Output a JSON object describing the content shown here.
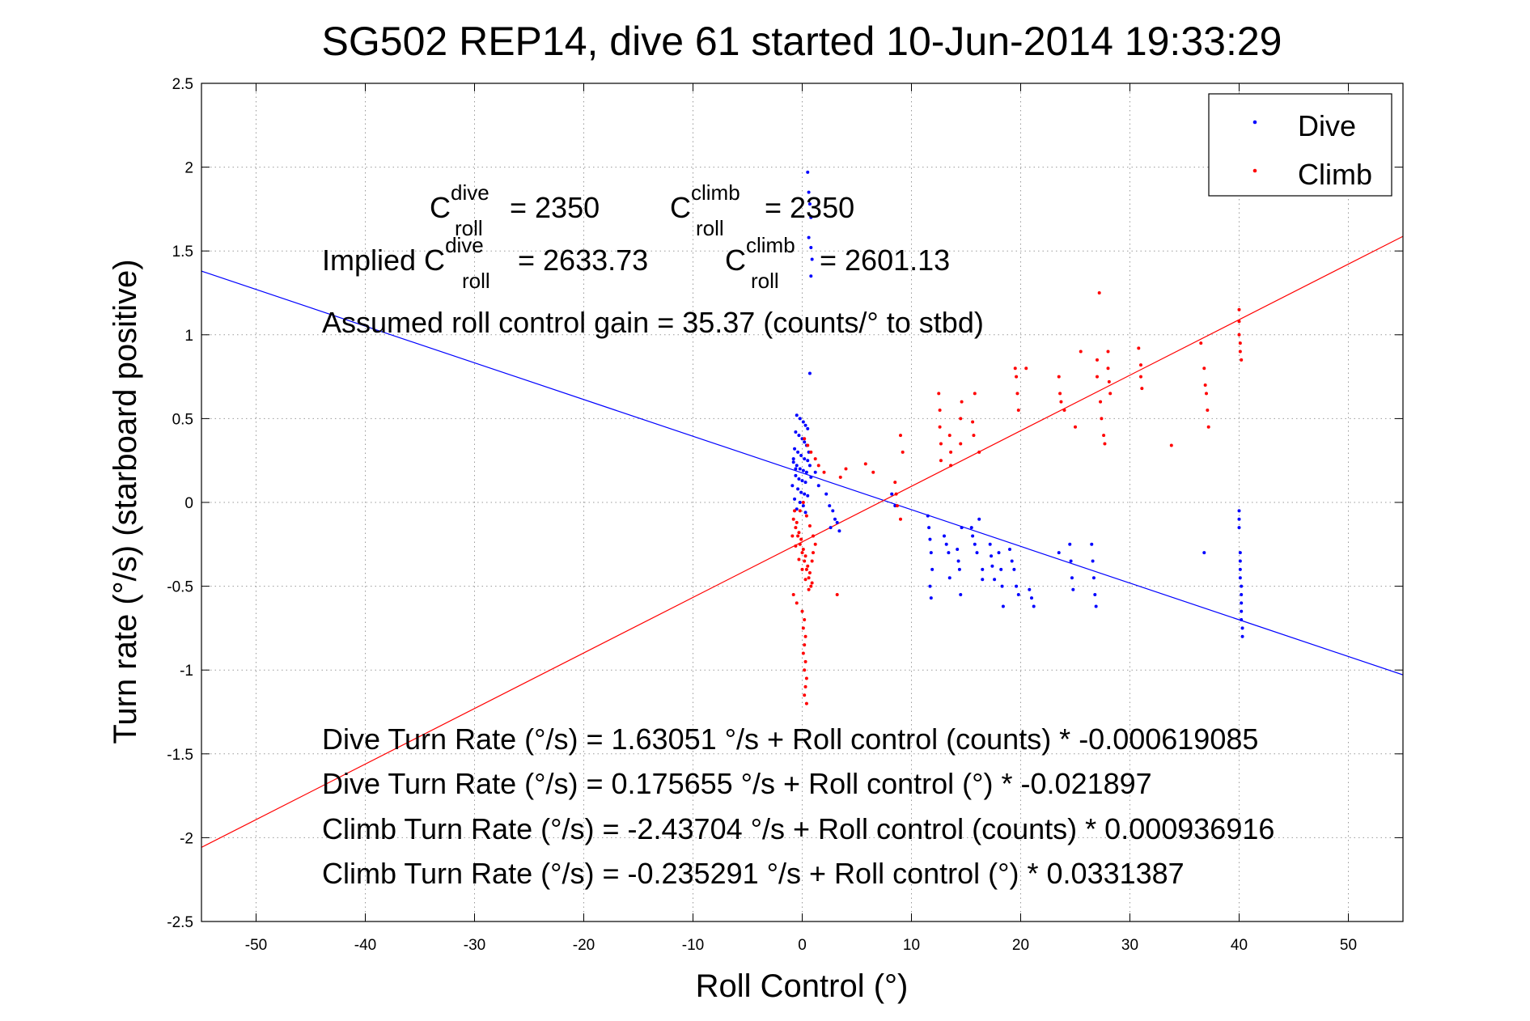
{
  "chart_data": {
    "type": "scatter",
    "title": "SG502 REP14, dive 61 started 10-Jun-2014 19:33:29",
    "xlabel": "Roll Control (°)",
    "ylabel": "Turn rate (°/s) (starboard positive)",
    "xlim": [
      -55,
      55
    ],
    "ylim": [
      -2.5,
      2.5
    ],
    "xticks": [
      "-50",
      "-40",
      "-30",
      "-20",
      "-10",
      "0",
      "10",
      "20",
      "30",
      "40",
      "50"
    ],
    "xtick_values": [
      -50,
      -40,
      -30,
      -20,
      -10,
      0,
      10,
      20,
      30,
      40,
      50
    ],
    "yticks": [
      "2.5",
      "2",
      "1.5",
      "1",
      "0.5",
      "0",
      "-0.5",
      "-1",
      "-1.5",
      "-2",
      "-2.5"
    ],
    "ytick_values": [
      2.5,
      2,
      1.5,
      1,
      0.5,
      0,
      -0.5,
      -1,
      -1.5,
      -2,
      -2.5
    ],
    "grid": true,
    "legend_position": "top-right",
    "series": [
      {
        "name": "Dive",
        "color": "#0000ff",
        "points": [
          [
            0.5,
            1.97
          ],
          [
            0.6,
            1.85
          ],
          [
            0.7,
            1.78
          ],
          [
            0.8,
            1.7
          ],
          [
            0.6,
            1.58
          ],
          [
            0.8,
            1.52
          ],
          [
            0.9,
            1.45
          ],
          [
            0.8,
            1.35
          ],
          [
            0.7,
            0.77
          ],
          [
            -0.5,
            0.52
          ],
          [
            -0.2,
            0.5
          ],
          [
            0.1,
            0.48
          ],
          [
            0.3,
            0.46
          ],
          [
            0.5,
            0.44
          ],
          [
            -0.6,
            0.42
          ],
          [
            -0.3,
            0.4
          ],
          [
            0.0,
            0.38
          ],
          [
            0.2,
            0.36
          ],
          [
            0.4,
            0.34
          ],
          [
            -0.7,
            0.32
          ],
          [
            -0.4,
            0.3
          ],
          [
            -0.1,
            0.28
          ],
          [
            0.2,
            0.26
          ],
          [
            0.5,
            0.25
          ],
          [
            -0.8,
            0.24
          ],
          [
            -0.5,
            0.22
          ],
          [
            -0.2,
            0.2
          ],
          [
            0.1,
            0.19
          ],
          [
            0.4,
            0.18
          ],
          [
            -0.6,
            0.16
          ],
          [
            -0.3,
            0.14
          ],
          [
            0.0,
            0.13
          ],
          [
            0.3,
            0.12
          ],
          [
            -0.9,
            0.1
          ],
          [
            -0.4,
            0.08
          ],
          [
            -0.1,
            0.06
          ],
          [
            0.2,
            0.05
          ],
          [
            0.5,
            0.04
          ],
          [
            -0.7,
            0.02
          ],
          [
            -0.2,
            0.0
          ],
          [
            0.1,
            -0.02
          ],
          [
            -0.5,
            -0.04
          ],
          [
            0.3,
            -0.06
          ],
          [
            -0.8,
            0.26
          ],
          [
            -0.6,
            0.2
          ],
          [
            0.6,
            0.3
          ],
          [
            0.7,
            0.22
          ],
          [
            0.8,
            0.15
          ],
          [
            1.2,
            0.18
          ],
          [
            1.5,
            0.1
          ],
          [
            2.2,
            0.05
          ],
          [
            2.5,
            -0.02
          ],
          [
            2.8,
            -0.05
          ],
          [
            3.0,
            -0.1
          ],
          [
            3.2,
            -0.12
          ],
          [
            2.6,
            -0.15
          ],
          [
            3.4,
            -0.17
          ],
          [
            8.2,
            0.05
          ],
          [
            8.5,
            -0.02
          ],
          [
            11.5,
            -0.08
          ],
          [
            11.6,
            -0.15
          ],
          [
            11.7,
            -0.22
          ],
          [
            11.8,
            -0.3
          ],
          [
            11.9,
            -0.4
          ],
          [
            11.7,
            -0.5
          ],
          [
            11.8,
            -0.57
          ],
          [
            13.0,
            -0.2
          ],
          [
            13.2,
            -0.25
          ],
          [
            13.4,
            -0.3
          ],
          [
            13.5,
            -0.45
          ],
          [
            14.2,
            -0.28
          ],
          [
            14.3,
            -0.35
          ],
          [
            14.4,
            -0.4
          ],
          [
            14.5,
            -0.55
          ],
          [
            14.6,
            -0.15
          ],
          [
            15.5,
            -0.15
          ],
          [
            15.6,
            -0.2
          ],
          [
            15.8,
            -0.25
          ],
          [
            16.0,
            -0.3
          ],
          [
            16.2,
            -0.1
          ],
          [
            16.5,
            -0.4
          ],
          [
            16.5,
            -0.46
          ],
          [
            17.2,
            -0.25
          ],
          [
            17.3,
            -0.32
          ],
          [
            17.4,
            -0.38
          ],
          [
            17.6,
            -0.46
          ],
          [
            18.0,
            -0.3
          ],
          [
            18.2,
            -0.4
          ],
          [
            18.3,
            -0.5
          ],
          [
            18.4,
            -0.62
          ],
          [
            19.0,
            -0.28
          ],
          [
            19.2,
            -0.35
          ],
          [
            19.4,
            -0.4
          ],
          [
            19.6,
            -0.5
          ],
          [
            19.8,
            -0.55
          ],
          [
            20.8,
            -0.52
          ],
          [
            21.0,
            -0.57
          ],
          [
            21.2,
            -0.62
          ],
          [
            23.5,
            -0.3
          ],
          [
            24.5,
            -0.25
          ],
          [
            24.6,
            -0.35
          ],
          [
            24.7,
            -0.45
          ],
          [
            24.8,
            -0.52
          ],
          [
            26.5,
            -0.25
          ],
          [
            26.6,
            -0.35
          ],
          [
            26.7,
            -0.45
          ],
          [
            26.8,
            -0.55
          ],
          [
            26.9,
            -0.62
          ],
          [
            36.8,
            -0.3
          ],
          [
            40.0,
            -0.05
          ],
          [
            40.0,
            -0.1
          ],
          [
            40.0,
            -0.15
          ],
          [
            40.1,
            -0.3
          ],
          [
            40.1,
            -0.35
          ],
          [
            40.1,
            -0.4
          ],
          [
            40.1,
            -0.45
          ],
          [
            40.2,
            -0.5
          ],
          [
            40.2,
            -0.55
          ],
          [
            40.2,
            -0.6
          ],
          [
            40.2,
            -0.65
          ],
          [
            40.2,
            -0.7
          ],
          [
            40.3,
            -0.75
          ],
          [
            40.3,
            -0.8
          ]
        ]
      },
      {
        "name": "Climb",
        "color": "#ff0000",
        "points": [
          [
            0.2,
            0.38
          ],
          [
            0.5,
            0.34
          ],
          [
            0.8,
            0.3
          ],
          [
            1.2,
            0.26
          ],
          [
            1.5,
            0.22
          ],
          [
            2.0,
            0.18
          ],
          [
            3.5,
            0.15
          ],
          [
            4.0,
            0.2
          ],
          [
            5.8,
            0.23
          ],
          [
            6.5,
            0.18
          ],
          [
            -0.8,
            -0.1
          ],
          [
            -0.6,
            -0.15
          ],
          [
            -0.4,
            -0.2
          ],
          [
            -0.2,
            -0.25
          ],
          [
            0.0,
            -0.3
          ],
          [
            0.2,
            -0.35
          ],
          [
            0.4,
            -0.4
          ],
          [
            0.6,
            -0.45
          ],
          [
            0.8,
            -0.5
          ],
          [
            -0.7,
            -0.05
          ],
          [
            -0.5,
            -0.12
          ],
          [
            -0.3,
            -0.18
          ],
          [
            -0.1,
            -0.22
          ],
          [
            0.1,
            -0.28
          ],
          [
            0.3,
            -0.32
          ],
          [
            0.5,
            -0.38
          ],
          [
            0.7,
            -0.42
          ],
          [
            0.9,
            -0.48
          ],
          [
            -0.9,
            -0.2
          ],
          [
            -0.6,
            -0.26
          ],
          [
            -0.3,
            -0.34
          ],
          [
            0.0,
            -0.4
          ],
          [
            0.3,
            -0.46
          ],
          [
            0.6,
            -0.52
          ],
          [
            -0.8,
            -0.55
          ],
          [
            -0.5,
            -0.6
          ],
          [
            -0.2,
            -0.05
          ],
          [
            0.1,
            0.0
          ],
          [
            0.4,
            -0.08
          ],
          [
            0.7,
            -0.14
          ],
          [
            1.0,
            -0.2
          ],
          [
            1.2,
            -0.25
          ],
          [
            1.0,
            -0.3
          ],
          [
            0.9,
            -0.35
          ],
          [
            0.0,
            -0.65
          ],
          [
            0.2,
            -0.7
          ],
          [
            0.1,
            -0.75
          ],
          [
            0.3,
            -0.8
          ],
          [
            0.2,
            -0.85
          ],
          [
            0.1,
            -0.9
          ],
          [
            0.3,
            -0.95
          ],
          [
            0.2,
            -1.0
          ],
          [
            0.4,
            -1.05
          ],
          [
            0.3,
            -1.1
          ],
          [
            0.2,
            -1.15
          ],
          [
            0.4,
            -1.2
          ],
          [
            3.2,
            -0.55
          ],
          [
            8.5,
            0.12
          ],
          [
            8.6,
            0.05
          ],
          [
            8.7,
            -0.02
          ],
          [
            9.0,
            0.4
          ],
          [
            9.2,
            0.3
          ],
          [
            9.0,
            -0.1
          ],
          [
            12.5,
            0.65
          ],
          [
            12.6,
            0.55
          ],
          [
            12.6,
            0.45
          ],
          [
            12.7,
            0.35
          ],
          [
            12.7,
            0.25
          ],
          [
            13.5,
            0.4
          ],
          [
            13.6,
            0.3
          ],
          [
            13.6,
            0.22
          ],
          [
            14.5,
            0.5
          ],
          [
            14.6,
            0.6
          ],
          [
            14.5,
            0.35
          ],
          [
            15.6,
            0.48
          ],
          [
            15.7,
            0.4
          ],
          [
            15.8,
            0.65
          ],
          [
            16.2,
            0.3
          ],
          [
            19.5,
            0.8
          ],
          [
            19.6,
            0.75
          ],
          [
            19.7,
            0.65
          ],
          [
            19.8,
            0.55
          ],
          [
            20.5,
            0.8
          ],
          [
            23.5,
            0.75
          ],
          [
            23.6,
            0.65
          ],
          [
            23.7,
            0.6
          ],
          [
            24.0,
            0.55
          ],
          [
            25.0,
            0.45
          ],
          [
            25.5,
            0.9
          ],
          [
            27.0,
            0.85
          ],
          [
            27.0,
            0.75
          ],
          [
            27.2,
            1.25
          ],
          [
            27.3,
            0.6
          ],
          [
            27.4,
            0.5
          ],
          [
            27.6,
            0.4
          ],
          [
            27.7,
            0.35
          ],
          [
            28.0,
            0.9
          ],
          [
            28.0,
            0.8
          ],
          [
            28.1,
            0.72
          ],
          [
            28.2,
            0.65
          ],
          [
            30.8,
            0.92
          ],
          [
            31.0,
            0.82
          ],
          [
            31.0,
            0.75
          ],
          [
            31.1,
            0.68
          ],
          [
            33.8,
            0.34
          ],
          [
            36.5,
            0.95
          ],
          [
            36.8,
            0.8
          ],
          [
            36.9,
            0.7
          ],
          [
            37.0,
            0.65
          ],
          [
            37.1,
            0.55
          ],
          [
            37.2,
            0.45
          ],
          [
            40.0,
            1.15
          ],
          [
            40.0,
            1.08
          ],
          [
            40.0,
            1.0
          ],
          [
            40.1,
            0.95
          ],
          [
            40.1,
            0.9
          ],
          [
            40.2,
            0.85
          ]
        ]
      }
    ],
    "fit_lines": [
      {
        "name": "Dive fit",
        "color": "#0000ff",
        "intercept": 0.175655,
        "slope": -0.021897
      },
      {
        "name": "Climb fit",
        "color": "#ff0000",
        "intercept": -0.235291,
        "slope": 0.0331387
      }
    ]
  },
  "legend": {
    "dive_label": "Dive",
    "climb_label": "Climb"
  },
  "annotations": {
    "c_roll_dive": {
      "base": "C",
      "sup": "dive",
      "sub": "roll",
      "value": " = 2350"
    },
    "c_roll_climb": {
      "base": "C",
      "sup": "climb",
      "sub": "roll",
      "value": " = 2350"
    },
    "implied_prefix": "Implied C",
    "implied_dive": {
      "sup": "dive",
      "sub": "roll",
      "value": " = 2633.73"
    },
    "implied_climb": {
      "base": "C",
      "sup": "climb",
      "sub": "roll",
      "value": " = 2601.13"
    },
    "gain": "Assumed roll control gain = 35.37 (counts/° to stbd)",
    "eq1": "Dive Turn Rate (°/s) = 1.63051 °/s + Roll control (counts) * -0.000619085",
    "eq2": "Dive Turn Rate (°/s) = 0.175655 °/s + Roll control (°) * -0.021897",
    "eq3": "Climb Turn Rate (°/s) = -2.43704 °/s + Roll control (counts) * 0.000936916",
    "eq4": "Climb Turn Rate (°/s) = -0.235291 °/s + Roll control (°) * 0.0331387"
  }
}
